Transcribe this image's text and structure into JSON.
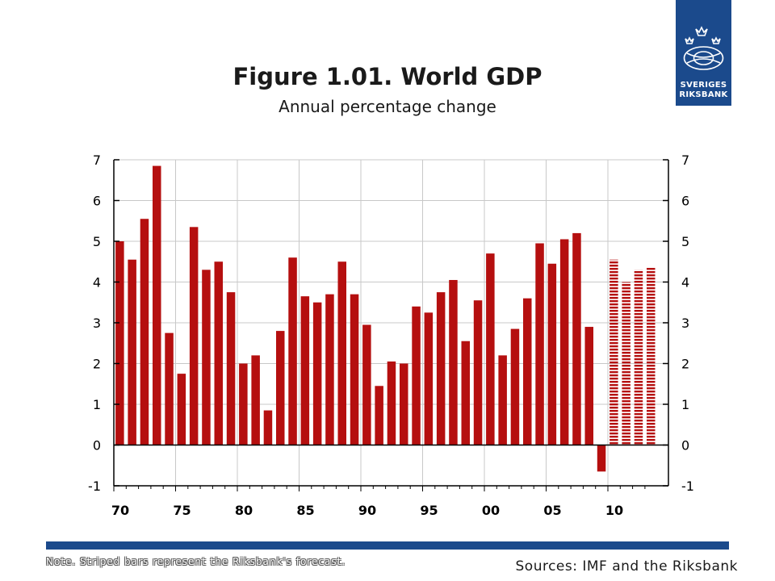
{
  "logo": {
    "line1": "SVERIGES",
    "line2": "RIKSBANK",
    "color": "#1b4a8c"
  },
  "note": "Note. Striped bars represent the Riksbank's forecast.",
  "sources": "Sources: IMF and the Riksbank",
  "colors": {
    "bar": "#b50f0f",
    "accent": "#1b4a8c"
  },
  "chart_data": {
    "type": "bar",
    "title": "Figure 1.01. World GDP",
    "subtitle": "Annual percentage change",
    "xlabel": "",
    "ylabel": "",
    "ylim": [
      -1,
      7
    ],
    "yticks": [
      7,
      6,
      5,
      4,
      3,
      2,
      1,
      0,
      -1
    ],
    "grid": true,
    "legend": "none",
    "x_tick_labels": [
      {
        "year": 1970,
        "label": "70"
      },
      {
        "year": 1975,
        "label": "75"
      },
      {
        "year": 1980,
        "label": "80"
      },
      {
        "year": 1985,
        "label": "85"
      },
      {
        "year": 1990,
        "label": "90"
      },
      {
        "year": 1995,
        "label": "95"
      },
      {
        "year": 2000,
        "label": "00"
      },
      {
        "year": 2005,
        "label": "05"
      },
      {
        "year": 2010,
        "label": "10"
      }
    ],
    "categories": [
      1970,
      1971,
      1972,
      1973,
      1974,
      1975,
      1976,
      1977,
      1978,
      1979,
      1980,
      1981,
      1982,
      1983,
      1984,
      1985,
      1986,
      1987,
      1988,
      1989,
      1990,
      1991,
      1992,
      1993,
      1994,
      1995,
      1996,
      1997,
      1998,
      1999,
      2000,
      2001,
      2002,
      2003,
      2004,
      2005,
      2006,
      2007,
      2008,
      2009,
      2010,
      2011,
      2012,
      2013
    ],
    "values": [
      5.0,
      4.55,
      5.55,
      6.85,
      2.75,
      1.75,
      5.35,
      4.3,
      4.5,
      3.75,
      2.0,
      2.2,
      0.85,
      2.8,
      4.6,
      3.65,
      3.5,
      3.7,
      4.5,
      3.7,
      2.95,
      1.45,
      2.05,
      2.0,
      3.4,
      3.25,
      3.75,
      4.05,
      2.55,
      3.55,
      4.7,
      2.2,
      2.85,
      3.6,
      4.95,
      4.45,
      5.05,
      5.2,
      2.9,
      -0.65,
      4.55,
      4.0,
      4.3,
      4.35
    ],
    "forecast_from": 2010
  }
}
